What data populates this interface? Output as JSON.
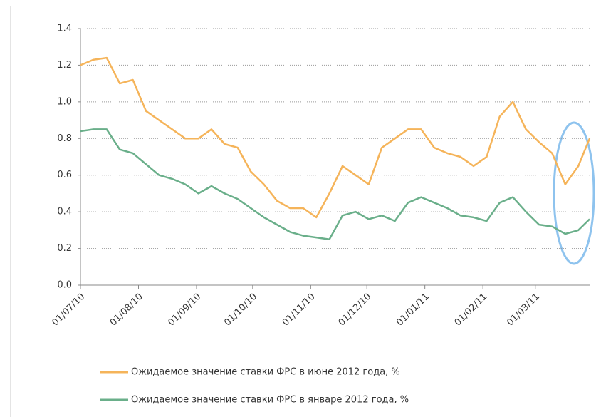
{
  "chart_data": {
    "type": "line",
    "x": [
      "01/07/10",
      "08/07/10",
      "15/07/10",
      "22/07/10",
      "29/07/10",
      "05/08/10",
      "12/08/10",
      "19/08/10",
      "26/08/10",
      "02/09/10",
      "09/09/10",
      "16/09/10",
      "23/09/10",
      "30/09/10",
      "07/10/10",
      "14/10/10",
      "21/10/10",
      "28/10/10",
      "04/11/10",
      "11/11/10",
      "18/11/10",
      "25/11/10",
      "02/12/10",
      "09/12/10",
      "16/12/10",
      "23/12/10",
      "30/12/10",
      "06/01/11",
      "13/01/11",
      "20/01/11",
      "27/01/11",
      "03/02/11",
      "10/02/11",
      "17/02/11",
      "24/02/11",
      "03/03/11",
      "10/03/11",
      "17/03/11",
      "24/03/11",
      "30/03/11"
    ],
    "series": [
      {
        "name": "Ожидаемое значение ставки ФРС в июне 2012 года, %",
        "color": "#f5b45a",
        "values": [
          1.2,
          1.23,
          1.24,
          1.1,
          1.12,
          0.95,
          0.9,
          0.85,
          0.8,
          0.8,
          0.85,
          0.77,
          0.75,
          0.62,
          0.55,
          0.46,
          0.42,
          0.42,
          0.37,
          0.5,
          0.65,
          0.6,
          0.55,
          0.75,
          0.8,
          0.85,
          0.85,
          0.75,
          0.72,
          0.7,
          0.65,
          0.7,
          0.92,
          1.0,
          0.85,
          0.78,
          0.72,
          0.55,
          0.65,
          0.8
        ]
      },
      {
        "name": "Ожидаемое значение ставки ФРС в январе 2012 года, %",
        "color": "#6aaf8a",
        "values": [
          0.84,
          0.85,
          0.85,
          0.74,
          0.72,
          0.66,
          0.6,
          0.58,
          0.55,
          0.5,
          0.54,
          0.5,
          0.47,
          0.42,
          0.37,
          0.33,
          0.29,
          0.27,
          0.26,
          0.25,
          0.38,
          0.4,
          0.36,
          0.38,
          0.35,
          0.45,
          0.48,
          0.45,
          0.42,
          0.38,
          0.37,
          0.35,
          0.45,
          0.48,
          0.4,
          0.33,
          0.32,
          0.28,
          0.3,
          0.36
        ]
      }
    ],
    "xlim": [
      "01/07/10",
      "30/03/11"
    ],
    "xticks": [
      "01/07/10",
      "01/08/10",
      "01/09/10",
      "01/10/10",
      "01/11/10",
      "01/12/10",
      "01/01/11",
      "01/02/11",
      "01/03/11"
    ],
    "ylim": [
      0,
      1.4
    ],
    "yticks": [
      {
        "value": 0,
        "label": "0.0"
      },
      0.2,
      0.4,
      0.6,
      0.8,
      {
        "value": 1,
        "label": "1.0"
      },
      1.2,
      1.4
    ],
    "grid": true
  }
}
